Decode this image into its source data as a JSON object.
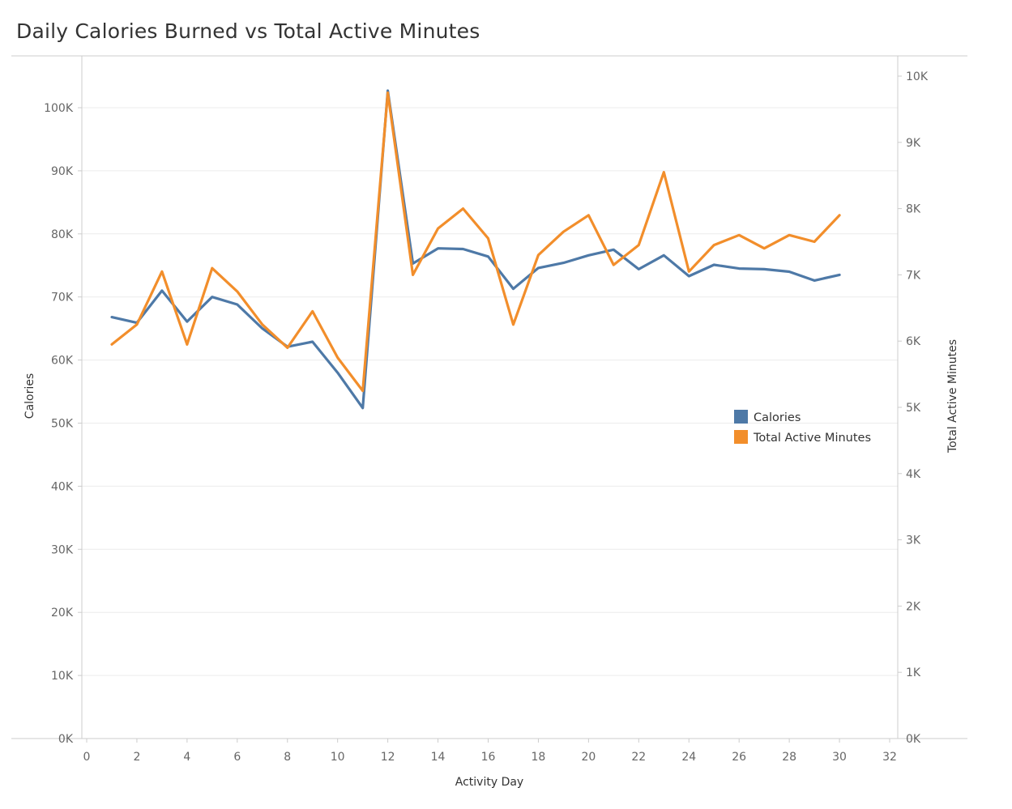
{
  "title": "Daily Calories Burned vs Total Active Minutes",
  "chart_data": {
    "type": "line",
    "title": "Daily Calories Burned vs Total Active Minutes",
    "xlabel": "Activity Day",
    "ylabel": "Calories",
    "y2label": "Total Active Minutes",
    "xlim": [
      0,
      32
    ],
    "ylim": [
      0,
      108000
    ],
    "y2lim": [
      0,
      10200
    ],
    "x_ticks": [
      0,
      2,
      4,
      6,
      8,
      10,
      12,
      14,
      16,
      18,
      20,
      22,
      24,
      26,
      28,
      30,
      32
    ],
    "x_tick_labels": [
      "0",
      "2",
      "4",
      "6",
      "8",
      "10",
      "12",
      "14",
      "16",
      "18",
      "20",
      "22",
      "24",
      "26",
      "28",
      "30",
      "32"
    ],
    "y_ticks": [
      0,
      10000,
      20000,
      30000,
      40000,
      50000,
      60000,
      70000,
      80000,
      90000,
      100000
    ],
    "y_tick_labels": [
      "0K",
      "10K",
      "20K",
      "30K",
      "40K",
      "50K",
      "60K",
      "70K",
      "80K",
      "90K",
      "100K"
    ],
    "y2_ticks": [
      0,
      1000,
      2000,
      3000,
      4000,
      5000,
      6000,
      7000,
      8000,
      9000,
      10000
    ],
    "y2_tick_labels": [
      "0K",
      "1K",
      "2K",
      "3K",
      "4K",
      "5K",
      "6K",
      "7K",
      "8K",
      "9K",
      "10K"
    ],
    "grid": true,
    "legend_position": "right",
    "x": [
      1,
      2,
      3,
      4,
      5,
      6,
      7,
      8,
      9,
      10,
      11,
      12,
      13,
      14,
      15,
      16,
      17,
      18,
      19,
      20,
      21,
      22,
      23,
      24,
      25,
      26,
      27,
      28,
      29,
      30
    ],
    "series": [
      {
        "name": "Calories",
        "axis": "left",
        "color": "#4e79a7",
        "values": [
          66800,
          65900,
          71000,
          66100,
          70000,
          68800,
          65000,
          62100,
          62900,
          58000,
          52400,
          102700,
          75300,
          77700,
          77600,
          76400,
          71300,
          74600,
          75400,
          76600,
          77500,
          74400,
          76600,
          73300,
          75100,
          74500,
          74400,
          74000,
          72600,
          73500
        ]
      },
      {
        "name": "Total Active Minutes",
        "axis": "right",
        "color": "#f28e2b",
        "values": [
          5950,
          6250,
          7050,
          5950,
          7100,
          6750,
          6250,
          5900,
          6450,
          5750,
          5250,
          9750,
          7000,
          7700,
          8000,
          7550,
          6250,
          7300,
          7650,
          7900,
          7150,
          7450,
          8550,
          7050,
          7450,
          7600,
          7400,
          7600,
          7500,
          7900
        ]
      }
    ]
  }
}
